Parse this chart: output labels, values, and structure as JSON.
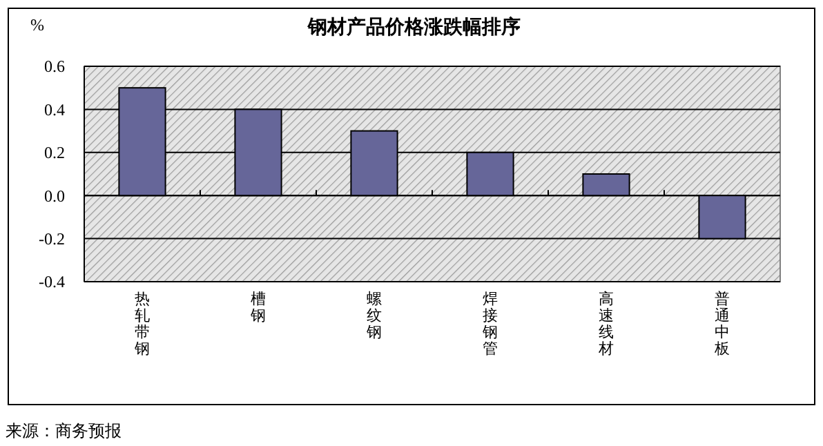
{
  "chart_data": {
    "type": "bar",
    "title": "钢材产品价格涨跌幅排序",
    "ylabel": "%",
    "categories": [
      "热轧带钢",
      "槽钢",
      "螺纹钢",
      "焊接钢管",
      "高速线材",
      "普通中板"
    ],
    "values": [
      0.5,
      0.4,
      0.3,
      0.2,
      0.1,
      -0.2
    ],
    "color": "#666699",
    "ylim": [
      -0.4,
      0.6
    ],
    "yticks": [
      -0.4,
      -0.2,
      {
        "value": 0,
        "label": "0.0"
      },
      0.2,
      0.4,
      0.6
    ],
    "grid": "y",
    "annotations": [
      "来源：商务预报"
    ]
  }
}
